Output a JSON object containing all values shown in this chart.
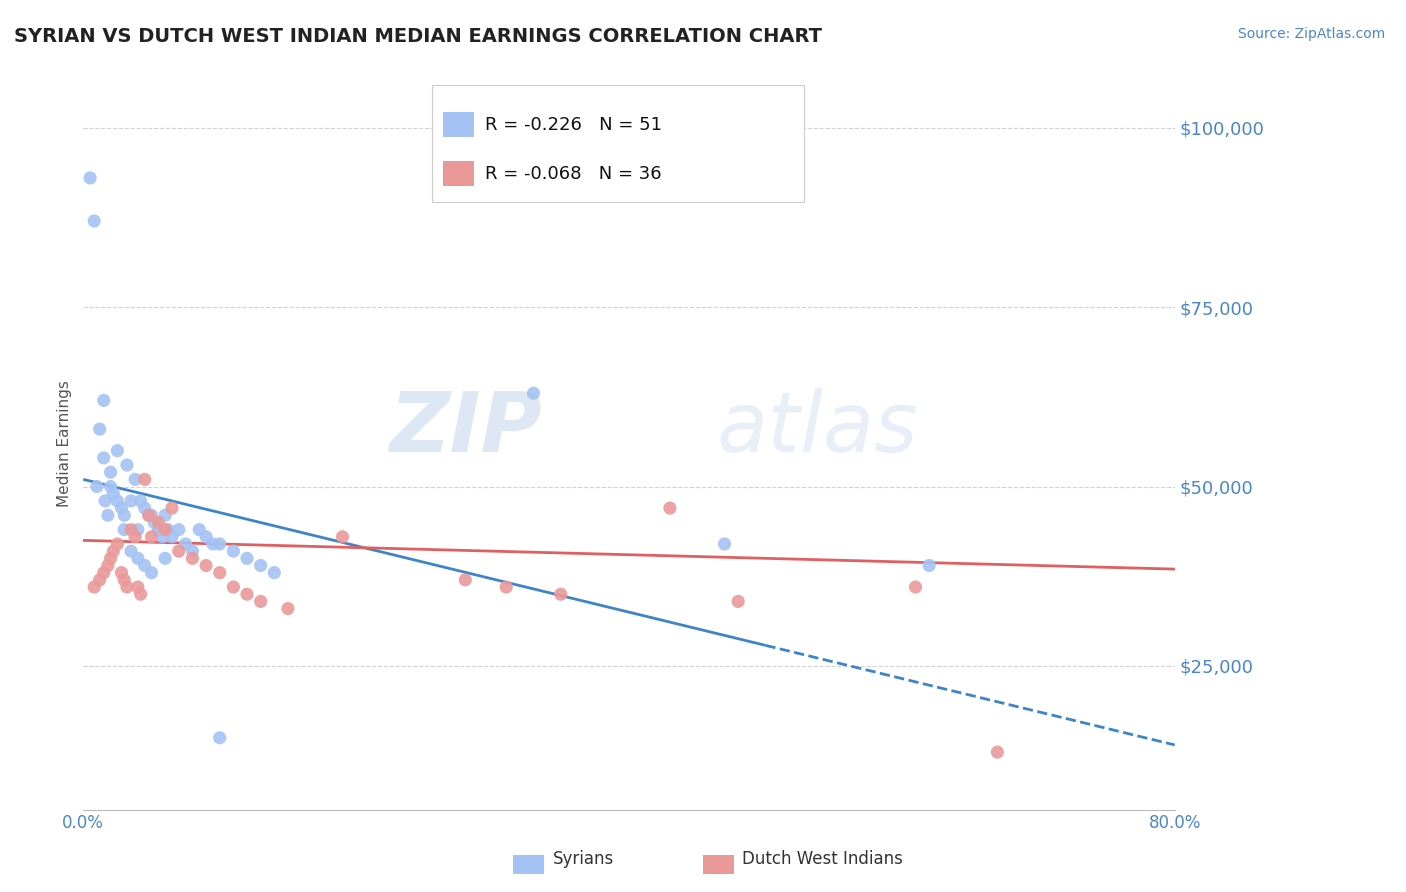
{
  "title": "SYRIAN VS DUTCH WEST INDIAN MEDIAN EARNINGS CORRELATION CHART",
  "source_text": "Source: ZipAtlas.com",
  "ylabel": "Median Earnings",
  "xmin": 0.0,
  "xmax": 0.8,
  "ymin": 5000,
  "ymax": 107000,
  "yticks": [
    25000,
    50000,
    75000,
    100000
  ],
  "ytick_labels": [
    "$25,000",
    "$50,000",
    "$75,000",
    "$100,000"
  ],
  "xticks": [
    0.0,
    0.1,
    0.2,
    0.3,
    0.4,
    0.5,
    0.6,
    0.7,
    0.8
  ],
  "xtick_labels": [
    "0.0%",
    "",
    "",
    "",
    "",
    "",
    "",
    "",
    "80.0%"
  ],
  "blue_color": "#a4c2f4",
  "pink_color": "#ea9999",
  "blue_line_color": "#3d85c8",
  "pink_line_color": "#e06060",
  "axis_color": "#4a86c8",
  "legend_R1": "-0.226",
  "legend_N1": "51",
  "legend_R2": "-0.068",
  "legend_N2": "36",
  "legend_label1": "Syrians",
  "legend_label2": "Dutch West Indians",
  "watermark_zip": "ZIP",
  "watermark_atlas": "atlas",
  "blue_line_x0": 0.0,
  "blue_line_y0": 51000,
  "blue_line_x1": 0.8,
  "blue_line_y1": 14000,
  "blue_line_solid_end": 0.5,
  "pink_line_x0": 0.0,
  "pink_line_y0": 42500,
  "pink_line_x1": 0.8,
  "pink_line_y1": 38500,
  "blue_dots_x": [
    0.005,
    0.008,
    0.01,
    0.012,
    0.015,
    0.016,
    0.018,
    0.02,
    0.022,
    0.025,
    0.028,
    0.03,
    0.032,
    0.035,
    0.038,
    0.04,
    0.042,
    0.045,
    0.048,
    0.05,
    0.052,
    0.055,
    0.058,
    0.06,
    0.062,
    0.065,
    0.07,
    0.075,
    0.08,
    0.085,
    0.09,
    0.095,
    0.1,
    0.11,
    0.12,
    0.13,
    0.14,
    0.015,
    0.02,
    0.025,
    0.03,
    0.035,
    0.04,
    0.045,
    0.05,
    0.055,
    0.06,
    0.33,
    0.47,
    0.62,
    0.1
  ],
  "blue_dots_y": [
    93000,
    87000,
    50000,
    58000,
    54000,
    48000,
    46000,
    50000,
    49000,
    55000,
    47000,
    46000,
    53000,
    48000,
    51000,
    44000,
    48000,
    47000,
    46000,
    46000,
    45000,
    44000,
    43000,
    46000,
    44000,
    43000,
    44000,
    42000,
    41000,
    44000,
    43000,
    42000,
    42000,
    41000,
    40000,
    39000,
    38000,
    62000,
    52000,
    48000,
    44000,
    41000,
    40000,
    39000,
    38000,
    44000,
    40000,
    63000,
    42000,
    39000,
    15000
  ],
  "pink_dots_x": [
    0.008,
    0.012,
    0.015,
    0.018,
    0.02,
    0.022,
    0.025,
    0.028,
    0.03,
    0.032,
    0.035,
    0.038,
    0.04,
    0.042,
    0.045,
    0.048,
    0.05,
    0.055,
    0.06,
    0.065,
    0.07,
    0.08,
    0.09,
    0.1,
    0.11,
    0.12,
    0.13,
    0.15,
    0.19,
    0.28,
    0.31,
    0.35,
    0.43,
    0.48,
    0.61,
    0.67
  ],
  "pink_dots_y": [
    36000,
    37000,
    38000,
    39000,
    40000,
    41000,
    42000,
    38000,
    37000,
    36000,
    44000,
    43000,
    36000,
    35000,
    51000,
    46000,
    43000,
    45000,
    44000,
    47000,
    41000,
    40000,
    39000,
    38000,
    36000,
    35000,
    34000,
    33000,
    43000,
    37000,
    36000,
    35000,
    47000,
    34000,
    36000,
    13000
  ]
}
